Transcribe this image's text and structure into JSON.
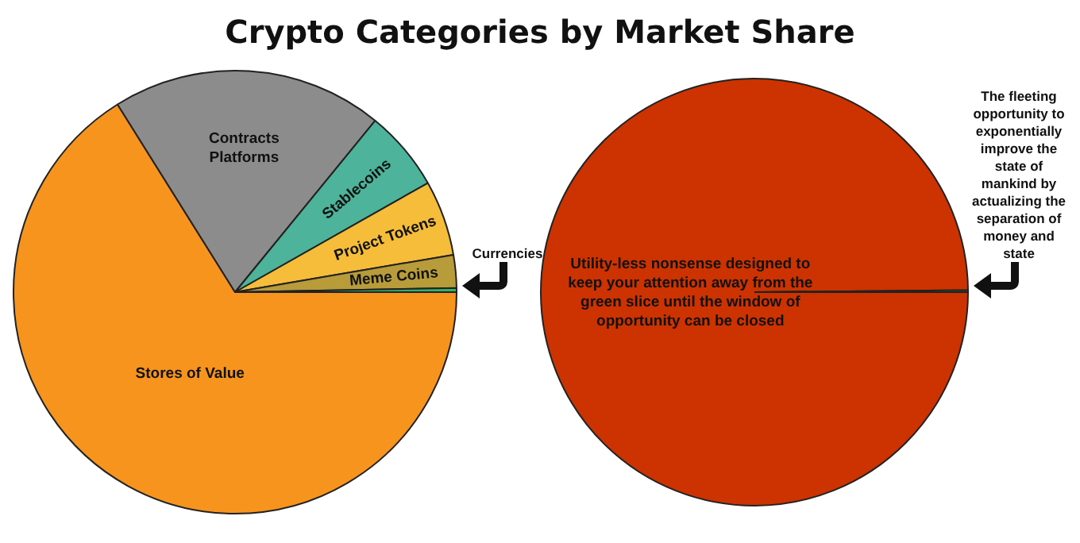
{
  "chart_data": [
    {
      "type": "pie",
      "title": "Crypto Categories by Market Share",
      "categories": [
        "Stores of Value",
        "Contracts Platforms",
        "Stablecoins",
        "Project Tokens",
        "Meme Coins",
        "Currencies"
      ],
      "values": [
        66.1,
        19.8,
        5.9,
        5.5,
        2.4,
        0.3
      ],
      "colors": [
        "#f7941d",
        "#8c8c8c",
        "#4db39a",
        "#f5bd3a",
        "#b89c3a",
        "#2fb36e"
      ],
      "legend": false
    },
    {
      "type": "pie",
      "categories": [
        "Utility-less nonsense designed to keep your attention away from the green slice until the window of opportunity can be closed",
        "The fleeting opportunity to exponentially improve the state of mankind by actualizing the separation of money and state"
      ],
      "values": [
        99.85,
        0.15
      ],
      "colors": [
        "#cc3300",
        "#22aa55"
      ],
      "legend": false
    }
  ]
}
